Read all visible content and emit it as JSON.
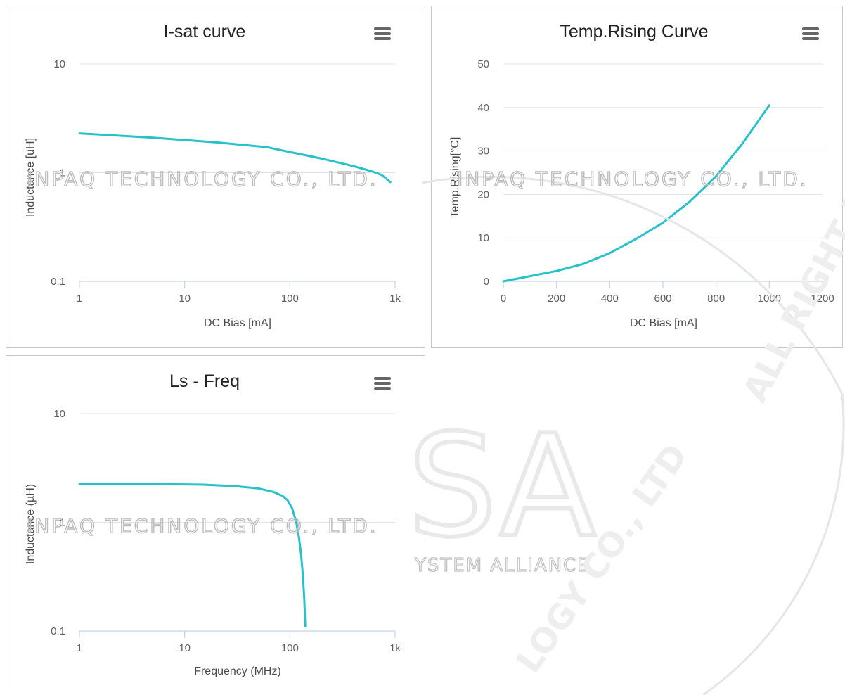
{
  "watermark": {
    "company": "INPAQ TECHNOLOGY CO., LTD.",
    "big_letters": "SA",
    "alliance": "YSTEM ALLIANCE",
    "arc_right": "ALL RIGHT RESERVED.",
    "arc_left": "LOGY CO., LTD"
  },
  "colors": {
    "series": "#26c1c9",
    "grid": "#e3e3e3",
    "axis": "#c8d4e6"
  },
  "chart_data": [
    {
      "id": "isat",
      "type": "line",
      "title": "I-sat curve",
      "xlabel": "DC Bias [mA]",
      "ylabel": "Inductance [uH]",
      "xscale": "log",
      "yscale": "log",
      "xlim": [
        1,
        1000
      ],
      "ylim": [
        0.1,
        10
      ],
      "xticks": [
        1,
        10,
        100,
        1000
      ],
      "xtick_labels": [
        "1",
        "10",
        "100",
        "1k"
      ],
      "yticks": [
        0.1,
        1,
        10
      ],
      "ytick_labels": [
        "0.1",
        "1",
        "10"
      ],
      "grid": true,
      "legend": "none",
      "series": [
        {
          "x": [
            1,
            5,
            20,
            60,
            100,
            200,
            400,
            600,
            750,
            900
          ],
          "y": [
            2.3,
            2.1,
            1.9,
            1.72,
            1.55,
            1.35,
            1.15,
            1.03,
            0.95,
            0.82
          ]
        }
      ]
    },
    {
      "id": "temp",
      "type": "line",
      "title": "Temp.Rising Curve",
      "xlabel": "DC Bias [mA]",
      "ylabel": "Temp.Rising[°C]",
      "xscale": "linear",
      "yscale": "linear",
      "xlim": [
        0,
        1200
      ],
      "ylim": [
        0,
        50
      ],
      "xticks": [
        0,
        200,
        400,
        600,
        800,
        1000,
        1200
      ],
      "xtick_labels": [
        "0",
        "200",
        "400",
        "600",
        "800",
        "1000",
        "1200"
      ],
      "yticks": [
        0,
        10,
        20,
        30,
        40,
        50
      ],
      "ytick_labels": [
        "0",
        "10",
        "20",
        "30",
        "40",
        "50"
      ],
      "grid": true,
      "legend": "none",
      "series": [
        {
          "x": [
            0,
            100,
            200,
            300,
            400,
            500,
            600,
            700,
            800,
            900,
            1000
          ],
          "y": [
            0,
            1.2,
            2.4,
            4,
            6.5,
            9.8,
            13.5,
            18.3,
            24.2,
            31.8,
            40.5
          ]
        }
      ]
    },
    {
      "id": "lsfreq",
      "type": "line",
      "title": "Ls - Freq",
      "xlabel": "Frequency (MHz)",
      "ylabel": "Inductance (µH)",
      "xscale": "log",
      "yscale": "log",
      "xlim": [
        1,
        1000
      ],
      "ylim": [
        0.1,
        10
      ],
      "xticks": [
        1,
        10,
        100,
        1000
      ],
      "xtick_labels": [
        "1",
        "10",
        "100",
        "1k"
      ],
      "yticks": [
        0.1,
        1,
        10
      ],
      "ytick_labels": [
        "0.1",
        "1",
        "10"
      ],
      "grid": true,
      "legend": "none",
      "series": [
        {
          "x": [
            1,
            5,
            15,
            30,
            50,
            70,
            85,
            95,
            105,
            115,
            122,
            128,
            133,
            137,
            140
          ],
          "y": [
            2.25,
            2.25,
            2.22,
            2.15,
            2.05,
            1.9,
            1.75,
            1.6,
            1.35,
            1.0,
            0.72,
            0.5,
            0.32,
            0.2,
            0.11
          ]
        }
      ]
    }
  ]
}
